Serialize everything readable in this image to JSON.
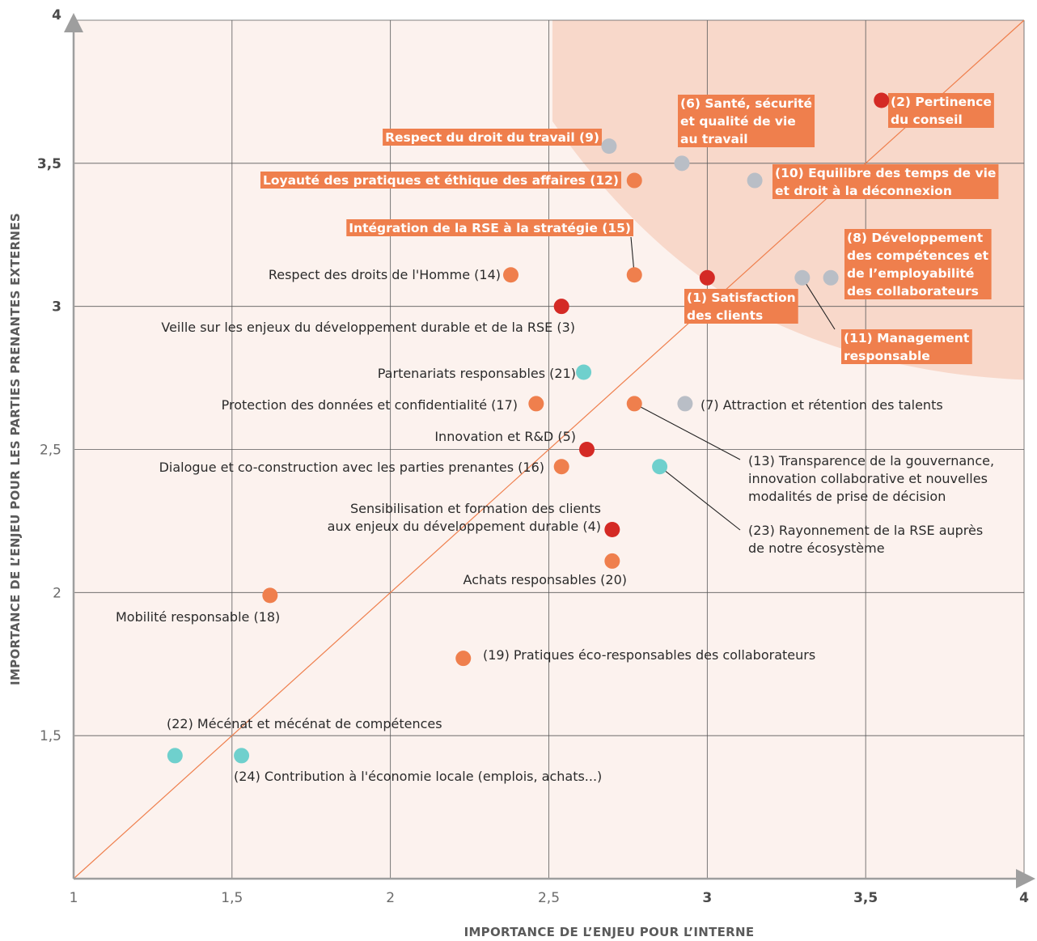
{
  "chart_data": {
    "type": "scatter",
    "xlabel": "IMPORTANCE DE L’ENJEU POUR L’INTERNE",
    "ylabel": "IMPORTANCE DE L’ENJEU POUR LES PARTIES PRENANTES EXTERNES",
    "xlim": [
      1,
      4
    ],
    "ylim": [
      1,
      4
    ],
    "grid": true,
    "diagonal": true,
    "x_ticks": [
      {
        "value": 1,
        "label": "1",
        "bold": false
      },
      {
        "value": 1.5,
        "label": "1,5",
        "bold": false
      },
      {
        "value": 2,
        "label": "2",
        "bold": false
      },
      {
        "value": 2.5,
        "label": "2,5",
        "bold": false
      },
      {
        "value": 3,
        "label": "3",
        "bold": true
      },
      {
        "value": 3.5,
        "label": "3,5",
        "bold": true
      },
      {
        "value": 4,
        "label": "4",
        "bold": true
      }
    ],
    "y_ticks": [
      {
        "value": 1.5,
        "label": "1,5",
        "bold": false
      },
      {
        "value": 2,
        "label": "2",
        "bold": false
      },
      {
        "value": 2.5,
        "label": "2,5",
        "bold": false
      },
      {
        "value": 3,
        "label": "3",
        "bold": true
      },
      {
        "value": 3.5,
        "label": "3,5",
        "bold": true
      },
      {
        "value": 4,
        "label": "4",
        "bold": true
      }
    ],
    "colors": {
      "red": "#d42a25",
      "orange": "#ef7f4d",
      "grey": "#b9bec6",
      "teal": "#6fd0cd",
      "highlight_box": "#ef7f4d",
      "priority_zone": "#f8d8ca",
      "plot_background": "#fcf2ee",
      "grid": "#5a5a5a",
      "diagonal": "#ef7f4d",
      "axis": "#9e9e9e"
    },
    "points": [
      {
        "id": 1,
        "x": 3.0,
        "y": 3.1,
        "color": "red",
        "label": [
          "(1) Satisfaction",
          "des clients"
        ],
        "highlight": true
      },
      {
        "id": 2,
        "x": 3.55,
        "y": 3.72,
        "color": "red",
        "label": [
          "(2) Pertinence",
          "du conseil"
        ],
        "highlight": true
      },
      {
        "id": 3,
        "x": 2.54,
        "y": 3.0,
        "color": "red",
        "label": [
          "Veille sur les enjeux du développement durable et de la RSE (3)"
        ],
        "highlight": false
      },
      {
        "id": 4,
        "x": 2.7,
        "y": 2.22,
        "color": "red",
        "label": [
          "Sensibilisation et formation des clients",
          "aux enjeux du développement durable (4)"
        ],
        "highlight": false
      },
      {
        "id": 5,
        "x": 2.62,
        "y": 2.5,
        "color": "red",
        "label": [
          "Innovation et R&D (5)"
        ],
        "highlight": false
      },
      {
        "id": 6,
        "x": 2.92,
        "y": 3.5,
        "color": "grey",
        "label": [
          "(6) Santé, sécurité",
          "et qualité de vie",
          "au travail"
        ],
        "highlight": true
      },
      {
        "id": 7,
        "x": 2.93,
        "y": 2.66,
        "color": "grey",
        "label": [
          "(7) Attraction et rétention des talents"
        ],
        "highlight": false
      },
      {
        "id": 8,
        "x": 3.39,
        "y": 3.1,
        "color": "grey",
        "label": [
          "(8) Développement",
          "des compétences et",
          "de l’employabilité",
          "des collaborateurs"
        ],
        "highlight": true
      },
      {
        "id": 9,
        "x": 2.69,
        "y": 3.56,
        "color": "grey",
        "label": [
          "Respect du droit du travail (9)"
        ],
        "highlight": true
      },
      {
        "id": 10,
        "x": 3.15,
        "y": 3.44,
        "color": "grey",
        "label": [
          "(10) Equilibre des temps de vie",
          "et droit à la déconnexion"
        ],
        "highlight": true
      },
      {
        "id": 11,
        "x": 3.3,
        "y": 3.1,
        "color": "grey",
        "label": [
          "(11) Management",
          "responsable"
        ],
        "highlight": true
      },
      {
        "id": 12,
        "x": 2.77,
        "y": 3.44,
        "color": "orange",
        "label": [
          "Loyauté des pratiques et éthique des affaires (12)"
        ],
        "highlight": true
      },
      {
        "id": 13,
        "x": 2.77,
        "y": 2.66,
        "color": "orange",
        "label": [
          "(13) Transparence de la gouvernance,",
          "innovation collaborative et nouvelles",
          "modalités de prise de décision"
        ],
        "highlight": false
      },
      {
        "id": 14,
        "x": 2.38,
        "y": 3.11,
        "color": "orange",
        "label": [
          "Respect des droits de l'Homme (14)"
        ],
        "highlight": false
      },
      {
        "id": 15,
        "x": 2.77,
        "y": 3.11,
        "color": "orange",
        "label": [
          "Intégration de la RSE à la stratégie (15)"
        ],
        "highlight": true
      },
      {
        "id": 16,
        "x": 2.54,
        "y": 2.44,
        "color": "orange",
        "label": [
          "Dialogue et co-construction avec les parties prenantes (16)"
        ],
        "highlight": false
      },
      {
        "id": 17,
        "x": 2.46,
        "y": 2.66,
        "color": "orange",
        "label": [
          "Protection des données et confidentialité (17)"
        ],
        "highlight": false
      },
      {
        "id": 18,
        "x": 1.62,
        "y": 1.99,
        "color": "orange",
        "label": [
          "Mobilité responsable (18)"
        ],
        "highlight": false
      },
      {
        "id": 19,
        "x": 2.23,
        "y": 1.77,
        "color": "orange",
        "label": [
          "(19) Pratiques éco-responsables des collaborateurs"
        ],
        "highlight": false
      },
      {
        "id": 20,
        "x": 2.7,
        "y": 2.11,
        "color": "orange",
        "label": [
          "Achats responsables (20)"
        ],
        "highlight": false
      },
      {
        "id": 21,
        "x": 2.61,
        "y": 2.77,
        "color": "teal",
        "label": [
          "Partenariats responsables (21)"
        ],
        "highlight": false
      },
      {
        "id": 22,
        "x": 1.32,
        "y": 1.43,
        "color": "teal",
        "label": [
          "(22) Mécénat et mécénat de compétences"
        ],
        "highlight": false
      },
      {
        "id": 23,
        "x": 2.85,
        "y": 2.44,
        "color": "teal",
        "label": [
          "(23) Rayonnement de la RSE auprès",
          "de notre écosystème"
        ],
        "highlight": false
      },
      {
        "id": 24,
        "x": 1.53,
        "y": 1.43,
        "color": "teal",
        "label": [
          "(24) Contribution à l'économie locale (emplois, achats...)"
        ],
        "highlight": false
      }
    ]
  }
}
